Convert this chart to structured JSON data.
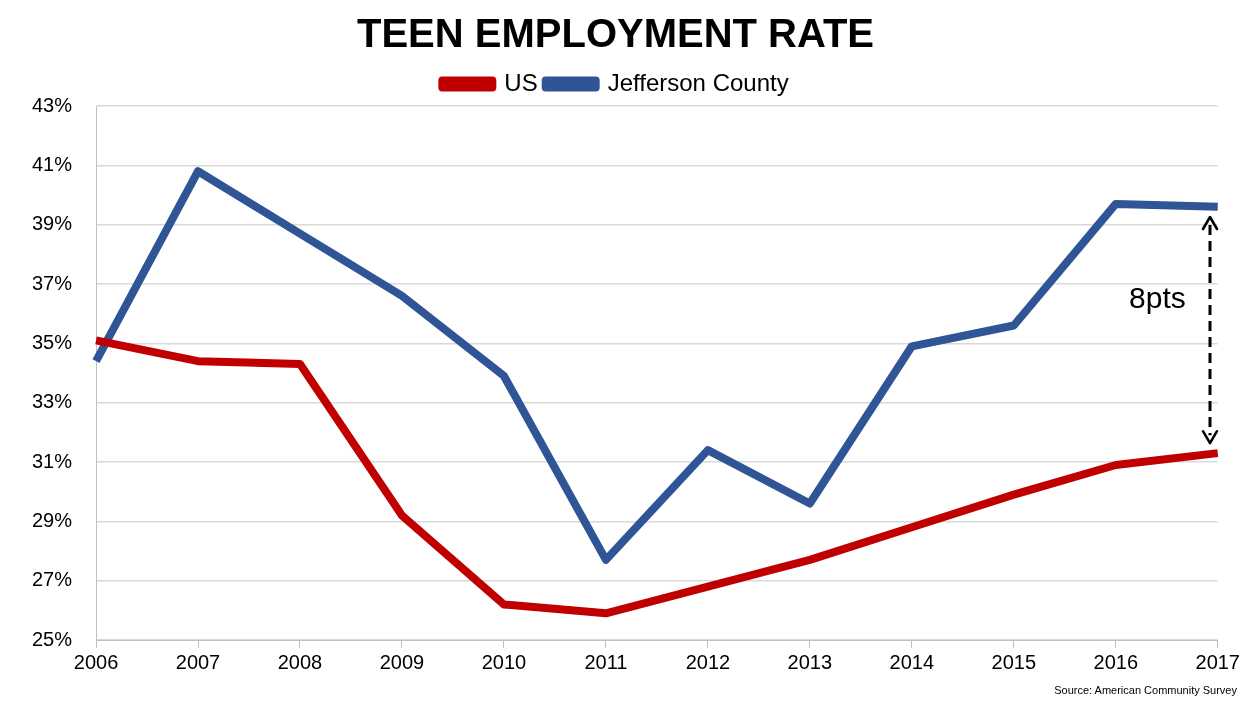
{
  "chart_data": {
    "type": "line",
    "title": "TEEN EMPLOYMENT RATE",
    "categories": [
      "2006",
      "2007",
      "2008",
      "2009",
      "2010",
      "2011",
      "2012",
      "2013",
      "2014",
      "2015",
      "2016",
      "2017"
    ],
    "series": [
      {
        "name": "US",
        "color": "#c00000",
        "values": [
          35.1,
          34.4,
          34.3,
          29.2,
          26.2,
          25.9,
          26.8,
          27.7,
          28.8,
          29.9,
          30.9,
          31.3
        ]
      },
      {
        "name": "Jefferson County",
        "color": "#2f5597",
        "values": [
          34.4,
          40.8,
          38.7,
          36.6,
          33.9,
          27.7,
          31.4,
          29.6,
          34.9,
          35.6,
          39.7,
          39.6
        ]
      }
    ],
    "ylim": [
      25,
      43
    ],
    "yticks": [
      {
        "value": 25,
        "label": "25%"
      },
      {
        "value": 27,
        "label": "27%"
      },
      {
        "value": 29,
        "label": "29%"
      },
      {
        "value": 31,
        "label": "31%"
      },
      {
        "value": 33,
        "label": "33%"
      },
      {
        "value": 35,
        "label": "35%"
      },
      {
        "value": 37,
        "label": "37%"
      },
      {
        "value": 39,
        "label": "39%"
      },
      {
        "value": 41,
        "label": "41%"
      },
      {
        "value": 43,
        "label": "43%"
      }
    ],
    "grid": "y",
    "legend": "top",
    "marker": "none",
    "line_style": "solid",
    "annotations": [
      "8pts",
      "Source: American Community Survey"
    ]
  }
}
